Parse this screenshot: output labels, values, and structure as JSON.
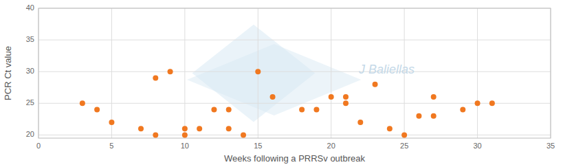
{
  "chart_data": {
    "type": "scatter",
    "x": [
      3,
      4,
      5,
      7,
      8,
      8,
      9,
      10,
      10,
      11,
      12,
      13,
      13,
      14,
      15,
      16,
      18,
      19,
      20,
      21,
      21,
      22,
      23,
      24,
      25,
      26,
      27,
      27,
      29,
      30,
      31
    ],
    "values": [
      25,
      24,
      22,
      21,
      29,
      20,
      30,
      21,
      20,
      21,
      24,
      24,
      21,
      20,
      30,
      26,
      24,
      24,
      26,
      25,
      26,
      22,
      28,
      21,
      20,
      23,
      23,
      26,
      24,
      25,
      25
    ],
    "color": "#f07820",
    "marker": "circle",
    "xlabel": "Weeks following a PRRSv outbreak",
    "ylabel": "PCR Ct value",
    "xlim": [
      0,
      35
    ],
    "ylim": [
      19.5,
      40
    ],
    "xticks": [
      0,
      5,
      10,
      15,
      20,
      25,
      30,
      35
    ],
    "yticks": [
      20,
      25,
      30,
      35,
      40
    ],
    "grid": true,
    "annotation": "J Baliellas"
  }
}
